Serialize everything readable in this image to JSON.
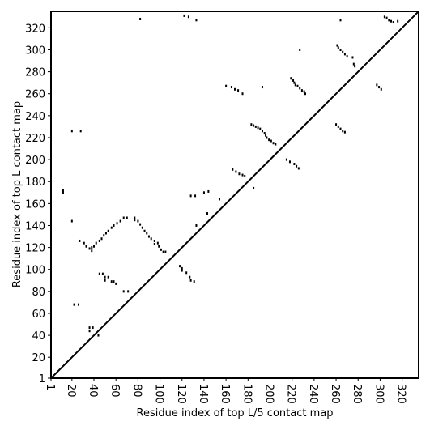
{
  "chart_data": {
    "type": "scatter",
    "xlabel": "Residue index of top L/5 contact map",
    "ylabel": "Residue index of top L contact map",
    "xlim": [
      1,
      335
    ],
    "ylim": [
      1,
      335
    ],
    "xticks": [
      1,
      20,
      40,
      60,
      80,
      100,
      120,
      140,
      160,
      180,
      200,
      220,
      240,
      260,
      280,
      300,
      320
    ],
    "yticks": [
      1,
      20,
      40,
      60,
      80,
      100,
      120,
      140,
      160,
      180,
      200,
      220,
      240,
      260,
      280,
      300,
      320
    ],
    "diagonal": true,
    "color": "#000000",
    "series": [
      {
        "color": "#000000",
        "x": [
          12,
          12,
          20,
          28,
          20,
          22,
          26,
          27,
          31,
          33,
          36,
          38,
          38,
          36,
          36,
          39,
          44,
          40,
          42,
          45,
          47,
          49,
          51,
          53,
          56,
          58,
          61,
          64,
          67,
          70,
          45,
          48,
          50,
          50,
          53,
          56,
          58,
          60,
          67,
          71,
          77,
          77,
          80,
          82,
          84,
          86,
          88,
          90,
          92,
          95,
          95,
          98,
          99,
          101,
          103,
          105,
          82,
          118,
          120,
          120,
          124,
          127,
          128,
          131,
          122,
          126,
          133,
          128,
          132,
          140,
          144,
          133,
          143,
          154,
          160,
          165,
          168,
          171,
          175,
          166,
          169,
          172,
          175,
          177,
          185,
          193,
          183,
          185,
          187,
          189,
          191,
          193,
          195,
          196,
          197,
          199,
          201,
          203,
          205,
          215,
          218,
          222,
          224,
          226,
          219,
          221,
          222,
          223,
          225,
          227,
          229,
          231,
          232,
          227,
          261,
          262,
          264,
          266,
          268,
          270,
          275,
          276,
          277,
          260,
          262,
          264,
          266,
          268,
          264,
          297,
          299,
          301,
          304,
          306,
          308,
          310,
          312,
          316
        ],
        "values": [
          170,
          172,
          226,
          226,
          144,
          68,
          68,
          126,
          124,
          121,
          119,
          117,
          120,
          47,
          44,
          47,
          40,
          121,
          124,
          126,
          128,
          131,
          133,
          135,
          138,
          140,
          142,
          144,
          147,
          147,
          96,
          96,
          93,
          90,
          93,
          89,
          89,
          87,
          80,
          80,
          147,
          145,
          144,
          141,
          138,
          135,
          133,
          130,
          128,
          126,
          123,
          124,
          121,
          118,
          116,
          116,
          328,
          103,
          101,
          99,
          97,
          93,
          90,
          89,
          331,
          330,
          327,
          167,
          167,
          170,
          171,
          140,
          151,
          164,
          267,
          266,
          264,
          263,
          260,
          191,
          189,
          187,
          186,
          185,
          174,
          266,
          232,
          231,
          230,
          229,
          228,
          226,
          224,
          222,
          220,
          218,
          217,
          215,
          214,
          200,
          198,
          196,
          194,
          192,
          274,
          272,
          270,
          268,
          267,
          265,
          263,
          262,
          260,
          300,
          304,
          302,
          300,
          298,
          296,
          294,
          293,
          287,
          285,
          232,
          230,
          228,
          226,
          225,
          327,
          268,
          266,
          264,
          330,
          329,
          327,
          326,
          325,
          326
        ]
      }
    ]
  }
}
